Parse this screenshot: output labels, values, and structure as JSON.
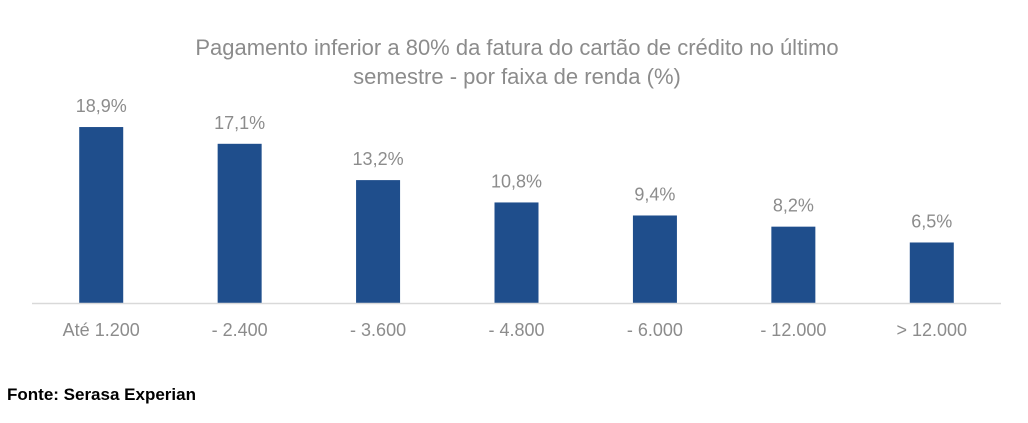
{
  "chart_data": {
    "type": "bar",
    "title_lines": [
      "Pagamento inferior a 80% da fatura do cartão de crédito no último",
      "semestre - por faixa de renda (%)"
    ],
    "categories": [
      "Até 1.200",
      "- 2.400",
      "- 3.600",
      "- 4.800",
      "- 6.000",
      "- 12.000",
      "> 12.000"
    ],
    "values": [
      18.9,
      17.1,
      13.2,
      10.8,
      9.4,
      8.2,
      6.5
    ],
    "data_labels": [
      "18,9%",
      "17,1%",
      "13,2%",
      "10,8%",
      "9,4%",
      "8,2%",
      "6,5%"
    ],
    "ylim": [
      0,
      20
    ],
    "grid": false,
    "bar_color": "#1f4e8c",
    "label_color": "#8c8c8c",
    "axis_color": "#d9d9d9"
  },
  "source": "Fonte: Serasa Experian"
}
